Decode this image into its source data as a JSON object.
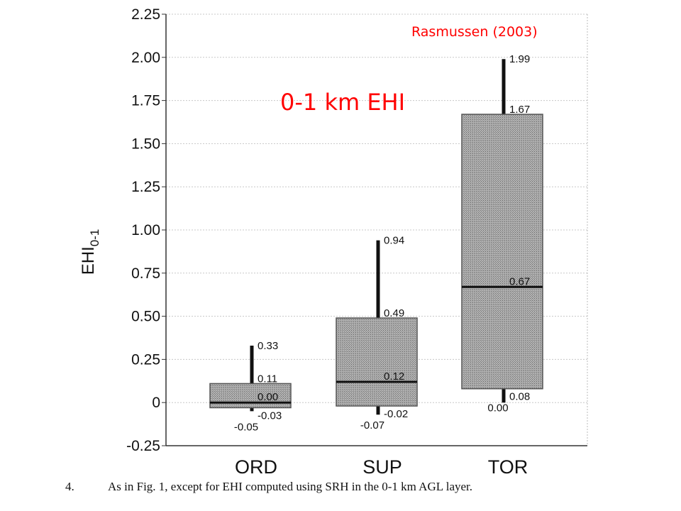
{
  "chart_data": {
    "type": "boxplot",
    "title": "0-1 km EHI",
    "source": "Rasmussen (2003)",
    "ylabel": "EHI",
    "ylabel_subscript": "0-1",
    "ylim": [
      -0.25,
      2.25
    ],
    "yticks": [
      -0.25,
      0,
      0.25,
      0.5,
      0.75,
      1.0,
      1.25,
      1.5,
      1.75,
      2.0,
      2.25
    ],
    "ytick_labels": [
      "-0.25",
      "0",
      "0.25",
      "0.50",
      "0.75",
      "1.00",
      "1.25",
      "1.50",
      "1.75",
      "2.00",
      "2.25"
    ],
    "grid": true,
    "categories": [
      "ORD",
      "SUP",
      "TOR"
    ],
    "boxes": [
      {
        "category": "ORD",
        "whisker_low": -0.05,
        "q1": -0.03,
        "median": 0.0,
        "q3": 0.11,
        "whisker_high": 0.33,
        "labels": {
          "whisker_high": "0.33",
          "q3": "0.11",
          "median": "0.00",
          "q1": "-0.03",
          "whisker_low": "-0.05"
        }
      },
      {
        "category": "SUP",
        "whisker_low": -0.07,
        "q1": -0.02,
        "median": 0.12,
        "q3": 0.49,
        "whisker_high": 0.94,
        "labels": {
          "whisker_high": "0.94",
          "q3": "0.49",
          "median": "0.12",
          "q1": "-0.02",
          "whisker_low": "-0.07"
        }
      },
      {
        "category": "TOR",
        "whisker_low": 0.0,
        "q1": 0.08,
        "median": 0.67,
        "q3": 1.67,
        "whisker_high": 1.99,
        "labels": {
          "whisker_high": "1.99",
          "q3": "1.67",
          "median": "0.67",
          "q1": "0.08",
          "whisker_low": "0.00"
        }
      }
    ],
    "colors": {
      "box_fill": "#a8a8a8",
      "box_stroke": "#555555",
      "line": "#111111",
      "annotation": "#ff0000",
      "grid": "#c8c8c8"
    }
  },
  "caption": {
    "number": "4.",
    "text": "As in Fig. 1, except for EHI computed using SRH in the 0-1 km AGL layer."
  }
}
